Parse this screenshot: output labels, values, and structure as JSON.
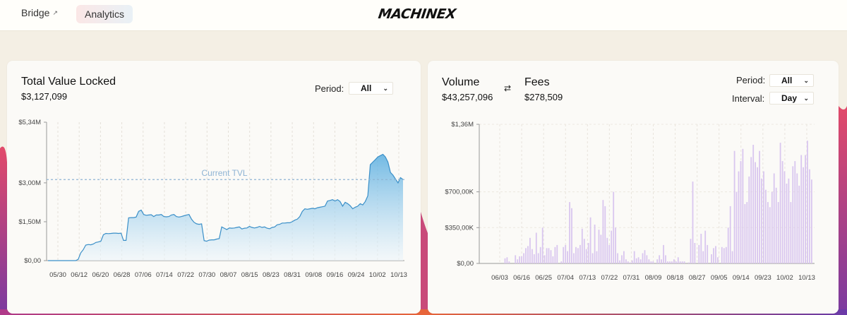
{
  "nav": {
    "bridge_label": "Bridge",
    "analytics_label": "Analytics",
    "logo_text": "MACHINEX"
  },
  "tvl": {
    "title": "Total Value Locked",
    "value": "$3,127,099",
    "period_label": "Period:",
    "period_value": "All",
    "current_label": "Current TVL"
  },
  "volume": {
    "title": "Volume",
    "value": "$43,257,096",
    "fees_title": "Fees",
    "fees_value": "$278,509",
    "period_label": "Period:",
    "period_value": "All",
    "interval_label": "Interval:",
    "interval_value": "Day"
  },
  "colors": {
    "tvl_line": "#3a8fc8",
    "tvl_fill_top": "#5aaee0",
    "tvl_fill_bottom": "#eef6fb",
    "volume_bar": "#d9c6ef"
  },
  "chart_data": [
    {
      "type": "area",
      "ylim": [
        0,
        5340000
      ],
      "yticks": [
        "$0,00",
        "$1,50M",
        "$3,00M",
        "$5,34M"
      ],
      "ytick_values": [
        0,
        1500000,
        3000000,
        5340000
      ],
      "x_labels": [
        "05/30",
        "06/12",
        "06/20",
        "06/28",
        "07/06",
        "07/14",
        "07/22",
        "07/30",
        "08/07",
        "08/15",
        "08/23",
        "08/31",
        "09/08",
        "09/16",
        "09/24",
        "10/02",
        "10/13"
      ],
      "reference_line": 3127099,
      "series": [
        {
          "values": [
            0,
            0,
            0,
            0,
            0,
            0,
            0,
            0,
            0,
            0,
            0,
            0,
            50000,
            300000,
            420000,
            600000,
            620000,
            610000,
            640000,
            700000,
            720000,
            750000,
            1000000,
            1050000,
            1040000,
            1050000,
            1060000,
            1060000,
            1050000,
            1060000,
            780000,
            780000,
            1650000,
            1660000,
            1660000,
            1680000,
            1900000,
            1950000,
            1780000,
            1750000,
            1760000,
            1770000,
            1700000,
            1760000,
            1760000,
            1780000,
            1700000,
            1690000,
            1700000,
            1760000,
            1780000,
            1700000,
            1680000,
            1700000,
            1730000,
            1760000,
            1780000,
            1600000,
            1480000,
            1420000,
            1400000,
            1420000,
            770000,
            750000,
            790000,
            800000,
            800000,
            830000,
            850000,
            1300000,
            1250000,
            1200000,
            1260000,
            1250000,
            1260000,
            1280000,
            1300000,
            1220000,
            1250000,
            1260000,
            1320000,
            1280000,
            1260000,
            1280000,
            1320000,
            1280000,
            1300000,
            1250000,
            1230000,
            1280000,
            1300000,
            1380000,
            1400000,
            1450000,
            1450000,
            1460000,
            1460000,
            1500000,
            1560000,
            1600000,
            1700000,
            1900000,
            2000000,
            1980000,
            2000000,
            2020000,
            2000000,
            2040000,
            2060000,
            2080000,
            2100000,
            2300000,
            2320000,
            2350000,
            2300000,
            2350000,
            2280000,
            2100000,
            2250000,
            2200000,
            2120000,
            2000000,
            2060000,
            2100000,
            2200000,
            2150000,
            2280000,
            2500000,
            3700000,
            3800000,
            3900000,
            4000000,
            4050000,
            4100000,
            4000000,
            3800000,
            3400000,
            3300000,
            3150000,
            3000000,
            3200000,
            3130000
          ]
        }
      ]
    },
    {
      "type": "bar",
      "ylim": [
        0,
        1360000
      ],
      "yticks": [
        "$0,00",
        "$350,00K",
        "$700,00K",
        "$1,36M"
      ],
      "ytick_values": [
        0,
        350000,
        700000,
        1360000
      ],
      "x_labels": [
        "06/03",
        "06/16",
        "06/25",
        "07/04",
        "07/13",
        "07/22",
        "07/31",
        "08/09",
        "08/18",
        "08/27",
        "09/05",
        "09/14",
        "09/23",
        "10/02",
        "10/13"
      ],
      "series": [
        {
          "name": "Volume",
          "values": [
            0,
            0,
            0,
            0,
            0,
            0,
            0,
            0,
            0,
            0,
            50000,
            60000,
            20000,
            0,
            0,
            80000,
            40000,
            70000,
            70000,
            100000,
            150000,
            170000,
            250000,
            140000,
            90000,
            300000,
            100000,
            160000,
            350000,
            80000,
            150000,
            150000,
            130000,
            70000,
            160000,
            180000,
            0,
            20000,
            160000,
            180000,
            120000,
            600000,
            540000,
            100000,
            160000,
            150000,
            180000,
            340000,
            240000,
            140000,
            200000,
            450000,
            100000,
            380000,
            120000,
            330000,
            280000,
            620000,
            560000,
            250000,
            180000,
            320000,
            700000,
            350000,
            100000,
            30000,
            80000,
            120000,
            40000,
            20000,
            10000,
            30000,
            120000,
            50000,
            60000,
            40000,
            100000,
            130000,
            80000,
            40000,
            20000,
            20000,
            0,
            40000,
            80000,
            40000,
            180000,
            80000,
            20000,
            20000,
            20000,
            40000,
            20000,
            60000,
            20000,
            20000,
            20000,
            0,
            10000,
            240000,
            800000,
            200000,
            0,
            180000,
            290000,
            120000,
            320000,
            180000,
            0,
            90000,
            150000,
            170000,
            60000,
            0,
            160000,
            150000,
            160000,
            350000,
            560000,
            120000,
            1100000,
            700000,
            900000,
            1000000,
            1120000,
            580000,
            600000,
            850000,
            1040000,
            1160000,
            990000,
            940000,
            1100000,
            830000,
            900000,
            720000,
            600000,
            550000,
            700000,
            880000,
            740000,
            600000,
            1180000,
            1000000,
            900000,
            780000,
            830000,
            600000,
            950000,
            1000000,
            880000,
            760000,
            1060000,
            940000,
            1060000,
            1200000,
            920000,
            820000
          ]
        }
      ]
    }
  ]
}
